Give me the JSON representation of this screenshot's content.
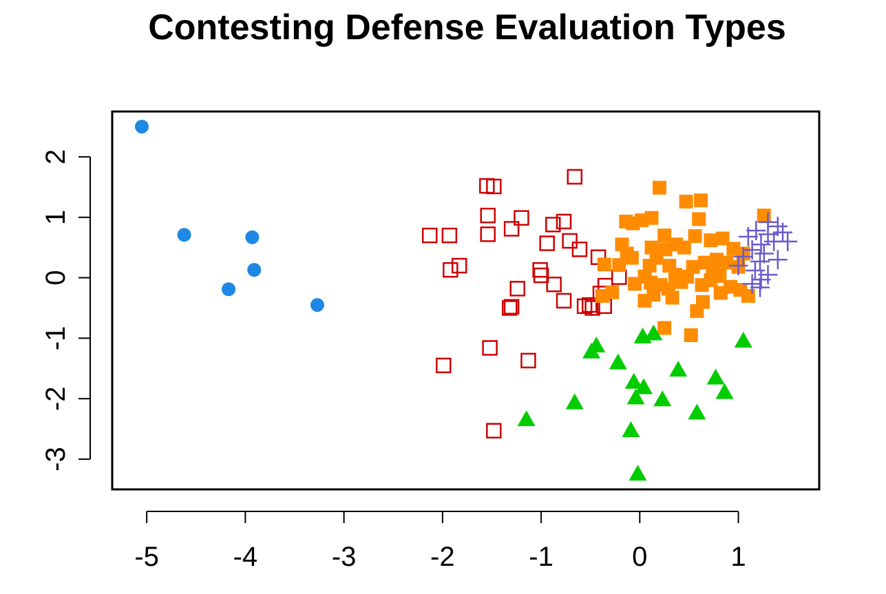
{
  "chart_data": {
    "type": "scatter",
    "title": "Contesting Defense Evaluation Types",
    "xlabel": "",
    "ylabel": "",
    "xlim": [
      -5.35,
      1.82
    ],
    "ylim": [
      -3.5,
      2.75
    ],
    "grid": false,
    "legend": "none",
    "x_ticks": [
      -5,
      -4,
      -3,
      -2,
      -1,
      0,
      1
    ],
    "y_ticks": [
      -3,
      -2,
      -1,
      0,
      1,
      2
    ],
    "x_tick_labels": [
      "-5",
      "-4",
      "-3",
      "-2",
      "-1",
      "0",
      "1"
    ],
    "y_tick_labels": [
      "-3",
      "-2",
      "-1",
      "0",
      "1",
      "2"
    ],
    "series": [
      {
        "marker": "filled-circle",
        "color": "#1E88E5",
        "points": [
          [
            -5.05,
            2.5
          ],
          [
            -4.62,
            0.71
          ],
          [
            -3.93,
            0.67
          ],
          [
            -3.91,
            0.13
          ],
          [
            -4.17,
            -0.19
          ],
          [
            -3.27,
            -0.45
          ]
        ]
      },
      {
        "marker": "open-square",
        "color": "#CC0000",
        "points": [
          [
            -0.66,
            1.67
          ],
          [
            -1.55,
            1.52
          ],
          [
            -1.48,
            1.51
          ],
          [
            -2.13,
            0.7
          ],
          [
            -1.93,
            0.7
          ],
          [
            -1.54,
            1.03
          ],
          [
            -1.54,
            0.72
          ],
          [
            -1.2,
            0.99
          ],
          [
            -1.3,
            0.81
          ],
          [
            -0.88,
            0.88
          ],
          [
            -0.77,
            0.93
          ],
          [
            -0.94,
            0.57
          ],
          [
            -0.71,
            0.61
          ],
          [
            -0.61,
            0.47
          ],
          [
            -0.42,
            0.34
          ],
          [
            -1.92,
            0.13
          ],
          [
            -1.83,
            0.2
          ],
          [
            -1.01,
            0.13
          ],
          [
            -1.0,
            0.04
          ],
          [
            -0.87,
            -0.11
          ],
          [
            -0.77,
            -0.38
          ],
          [
            -1.24,
            -0.18
          ],
          [
            -1.3,
            -0.48
          ],
          [
            -1.32,
            -0.5
          ],
          [
            -0.51,
            -0.45
          ],
          [
            -0.56,
            -0.47
          ],
          [
            -0.48,
            -0.5
          ],
          [
            -0.36,
            -0.47
          ],
          [
            -0.35,
            -0.13
          ],
          [
            -0.21,
            0.01
          ],
          [
            -0.4,
            -0.26
          ],
          [
            -1.99,
            -1.45
          ],
          [
            -1.52,
            -1.16
          ],
          [
            -1.13,
            -1.37
          ],
          [
            -1.48,
            -2.53
          ]
        ]
      },
      {
        "marker": "filled-square",
        "color": "#FF8C00",
        "points": [
          [
            0.2,
            1.49
          ],
          [
            0.47,
            1.26
          ],
          [
            0.62,
            1.28
          ],
          [
            0.12,
            0.99
          ],
          [
            0.02,
            0.95
          ],
          [
            -0.07,
            0.9
          ],
          [
            -0.14,
            0.93
          ],
          [
            0.6,
            0.97
          ],
          [
            0.25,
            0.7
          ],
          [
            0.37,
            0.55
          ],
          [
            0.45,
            0.5
          ],
          [
            0.56,
            0.69
          ],
          [
            0.72,
            0.62
          ],
          [
            0.84,
            0.65
          ],
          [
            0.95,
            0.48
          ],
          [
            1.05,
            0.4
          ],
          [
            0.12,
            0.5
          ],
          [
            0.17,
            0.33
          ],
          [
            0.26,
            0.47
          ],
          [
            -0.18,
            0.55
          ],
          [
            -0.13,
            0.4
          ],
          [
            -0.08,
            0.33
          ],
          [
            -0.21,
            0.21
          ],
          [
            -0.36,
            0.22
          ],
          [
            0.3,
            0.2
          ],
          [
            0.36,
            0.05
          ],
          [
            0.54,
            0.18
          ],
          [
            0.66,
            0.25
          ],
          [
            0.78,
            0.3
          ],
          [
            0.88,
            0.25
          ],
          [
            1.0,
            0.18
          ],
          [
            0.1,
            0.2
          ],
          [
            0.05,
            0.02
          ],
          [
            -0.05,
            -0.1
          ],
          [
            0.11,
            -0.08
          ],
          [
            0.21,
            -0.12
          ],
          [
            0.29,
            -0.18
          ],
          [
            0.42,
            -0.07
          ],
          [
            0.63,
            -0.12
          ],
          [
            0.72,
            -0.04
          ],
          [
            0.81,
            0.03
          ],
          [
            0.92,
            -0.15
          ],
          [
            1.02,
            -0.2
          ],
          [
            1.1,
            -0.3
          ],
          [
            0.05,
            -0.38
          ],
          [
            0.14,
            -0.28
          ],
          [
            0.33,
            -0.33
          ],
          [
            0.58,
            -0.55
          ],
          [
            0.64,
            -0.4
          ],
          [
            0.82,
            -0.25
          ],
          [
            -0.28,
            -0.24
          ],
          [
            -0.38,
            -0.3
          ],
          [
            0.25,
            -0.83
          ],
          [
            0.52,
            -0.95
          ],
          [
            1.26,
            1.03
          ],
          [
            0.74,
            0.12
          ],
          [
            0.48,
            0.02
          ]
        ]
      },
      {
        "marker": "plus",
        "color": "#6A5ACD",
        "points": [
          [
            1.3,
            0.92
          ],
          [
            1.4,
            0.85
          ],
          [
            1.18,
            0.78
          ],
          [
            1.3,
            0.72
          ],
          [
            1.1,
            0.68
          ],
          [
            1.36,
            0.6
          ],
          [
            1.5,
            0.6
          ],
          [
            1.23,
            0.55
          ],
          [
            1.14,
            0.46
          ],
          [
            1.26,
            0.4
          ],
          [
            1.05,
            0.35
          ],
          [
            1.4,
            0.3
          ],
          [
            1.22,
            0.27
          ],
          [
            1.0,
            0.2
          ],
          [
            1.17,
            0.12
          ],
          [
            1.3,
            0.05
          ],
          [
            1.23,
            -0.03
          ],
          [
            1.14,
            -0.1
          ],
          [
            1.22,
            -0.16
          ],
          [
            1.45,
            0.75
          ]
        ]
      },
      {
        "marker": "filled-triangle",
        "color": "#00CC00",
        "points": [
          [
            -0.44,
            -1.13
          ],
          [
            -0.49,
            -1.23
          ],
          [
            0.03,
            -0.98
          ],
          [
            0.14,
            -0.93
          ],
          [
            1.05,
            -1.05
          ],
          [
            -0.22,
            -1.41
          ],
          [
            0.39,
            -1.53
          ],
          [
            -0.06,
            -1.73
          ],
          [
            0.04,
            -1.82
          ],
          [
            0.77,
            -1.66
          ],
          [
            0.86,
            -1.9
          ],
          [
            -0.04,
            -1.99
          ],
          [
            0.23,
            -2.02
          ],
          [
            -0.66,
            -2.07
          ],
          [
            0.58,
            -2.24
          ],
          [
            -1.15,
            -2.35
          ],
          [
            -0.09,
            -2.53
          ],
          [
            -0.02,
            -3.25
          ]
        ]
      }
    ]
  }
}
